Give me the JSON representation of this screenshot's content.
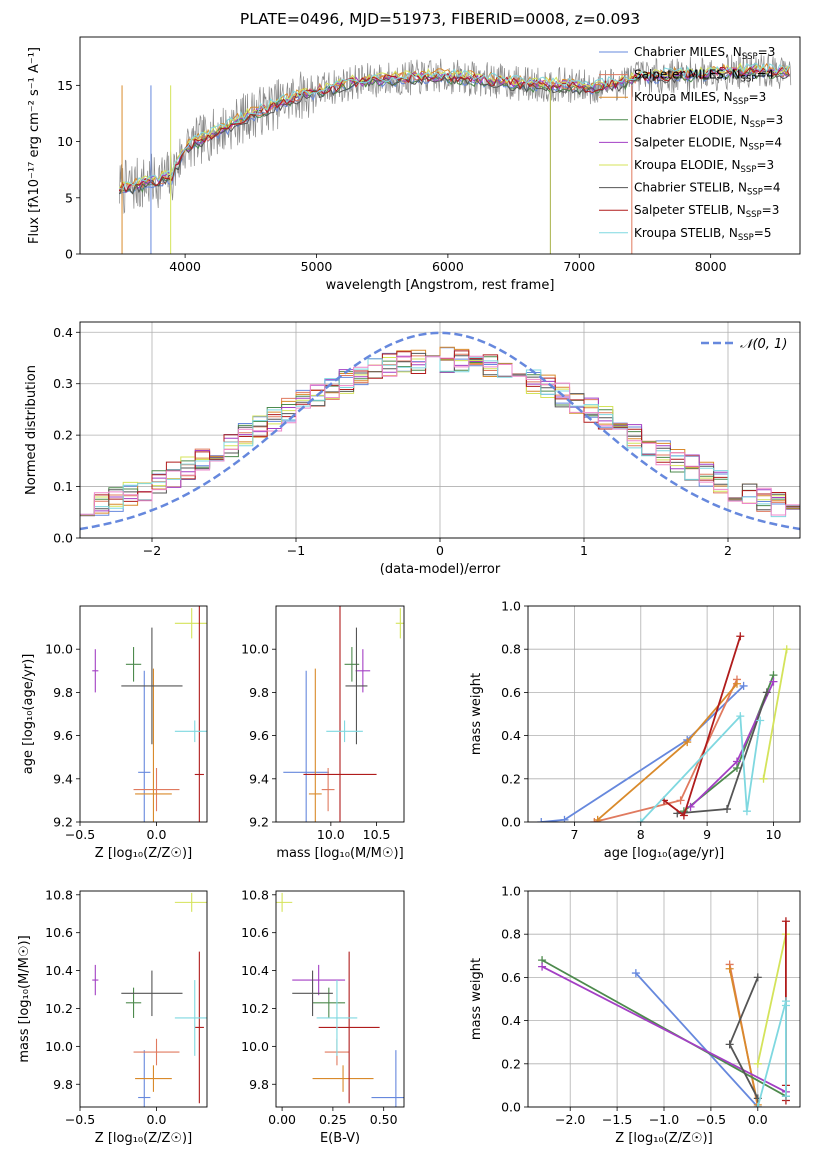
{
  "title": "PLATE=0496, MJD=51973, FIBERID=0008, z=0.093",
  "chart_data": [
    {
      "id": "spectrum",
      "type": "line",
      "xlabel": "wavelength [Angstrom, rest frame]",
      "ylabel": "Flux [fλ10⁻¹⁷ erg cm⁻² s⁻¹ A⁻¹]",
      "xlim": [
        3200,
        8680
      ],
      "ylim": [
        0,
        19.3
      ],
      "xticks": [
        4000,
        5000,
        6000,
        7000,
        8000
      ],
      "yticks": [
        0,
        5,
        10,
        15
      ],
      "legend_position": "top-right",
      "series": [
        {
          "name": "Chabrier MILES, N_SSP=3",
          "label": "Chabrier MILES, N",
          "sub": "SSP",
          "suffix": "=3",
          "color": "#6688dd"
        },
        {
          "name": "Salpeter MILES, N_SSP=4",
          "label": "Salpeter MILES, N",
          "sub": "SSP",
          "suffix": "=4",
          "color": "#e07a5f"
        },
        {
          "name": "Kroupa MILES, N_SSP=3",
          "label": "Kroupa MILES, N",
          "sub": "SSP",
          "suffix": "=3",
          "color": "#d98a2b"
        },
        {
          "name": "Chabrier ELODIE, N_SSP=3",
          "label": "Chabrier ELODIE, N",
          "sub": "SSP",
          "suffix": "=3",
          "color": "#4d8a4d"
        },
        {
          "name": "Salpeter ELODIE, N_SSP=4",
          "label": "Salpeter ELODIE, N",
          "sub": "SSP",
          "suffix": "=4",
          "color": "#a33fc4"
        },
        {
          "name": "Kroupa ELODIE, N_SSP=3",
          "label": "Kroupa ELODIE, N",
          "sub": "SSP",
          "suffix": "=3",
          "color": "#d4e35a"
        },
        {
          "name": "Chabrier STELIB, N_SSP=4",
          "label": "Chabrier STELIB, N",
          "sub": "SSP",
          "suffix": "=4",
          "color": "#555555"
        },
        {
          "name": "Salpeter STELIB, N_SSP=3",
          "label": "Salpeter STELIB, N",
          "sub": "SSP",
          "suffix": "=3",
          "color": "#b01c1c"
        },
        {
          "name": "Kroupa STELIB, N_SSP=5",
          "label": "Kroupa STELIB, N",
          "sub": "SSP",
          "suffix": "=5",
          "color": "#7fd8e0"
        }
      ],
      "continuum_anchors": [
        [
          3500,
          5.8
        ],
        [
          3700,
          6.3
        ],
        [
          3900,
          6.9
        ],
        [
          4000,
          9.4
        ],
        [
          4200,
          10.6
        ],
        [
          4500,
          12.4
        ],
        [
          4800,
          13.8
        ],
        [
          5000,
          14.5
        ],
        [
          5300,
          15.3
        ],
        [
          5600,
          15.6
        ],
        [
          6000,
          15.8
        ],
        [
          6300,
          15.5
        ],
        [
          6600,
          15.1
        ],
        [
          6900,
          15.0
        ],
        [
          7100,
          14.8
        ],
        [
          7300,
          15.2
        ],
        [
          7500,
          15.8
        ],
        [
          7800,
          15.9
        ],
        [
          8100,
          16.2
        ],
        [
          8400,
          16.3
        ],
        [
          8600,
          16.1
        ]
      ]
    },
    {
      "id": "residuals",
      "type": "step",
      "xlabel": "(data-model)/error",
      "ylabel": "Normed distribution",
      "xlim": [
        -2.5,
        2.5
      ],
      "ylim": [
        0,
        0.42
      ],
      "xticks": [
        -2,
        -1,
        0,
        1,
        2
      ],
      "yticks": [
        0.0,
        0.1,
        0.2,
        0.3,
        0.4
      ],
      "legend": "𝒩(0, 1)",
      "legend_position": "top-right",
      "gaussian_color": "#6688dd",
      "bin_width": 0.1
    },
    {
      "id": "age-vs-Z",
      "type": "errorbar",
      "xlabel": "Z [log₁₀(Z/Z☉)]",
      "ylabel": "age  [log₁₀(age/yr)]",
      "xlim": [
        -0.5,
        0.33
      ],
      "ylim": [
        9.2,
        10.2
      ],
      "xticks": [
        -0.5,
        0.0
      ],
      "yticks": [
        9.2,
        9.4,
        9.6,
        9.8,
        10.0
      ]
    },
    {
      "id": "age-vs-mass",
      "type": "errorbar",
      "xlabel": "mass [log₁₀(M/M☉)]",
      "xlim": [
        9.4,
        10.8
      ],
      "ylim": [
        9.2,
        10.2
      ],
      "xticks": [
        10.0,
        10.5
      ],
      "yticks": [
        9.2,
        9.4,
        9.6,
        9.8,
        10.0
      ]
    },
    {
      "id": "weight-vs-age",
      "type": "line",
      "xlabel": "age  [log₁₀(age/yr)]",
      "ylabel": "mass weight",
      "xlim": [
        6.3,
        10.4
      ],
      "ylim": [
        0,
        1
      ],
      "xticks": [
        7,
        8,
        9,
        10
      ],
      "yticks": [
        0.0,
        0.2,
        0.4,
        0.6,
        0.8,
        1.0
      ]
    },
    {
      "id": "mass-vs-Z",
      "type": "errorbar",
      "xlabel": "Z [log₁₀(Z/Z☉)]",
      "ylabel": "mass [log₁₀(M/M☉)]",
      "xlim": [
        -0.5,
        0.33
      ],
      "ylim": [
        9.68,
        10.82
      ],
      "xticks": [
        -0.5,
        0.0
      ],
      "yticks": [
        9.8,
        10.0,
        10.2,
        10.4,
        10.6,
        10.8
      ]
    },
    {
      "id": "mass-vs-ebv",
      "type": "errorbar",
      "xlabel": "E(B-V)",
      "xlim": [
        -0.03,
        0.6
      ],
      "ylim": [
        9.68,
        10.82
      ],
      "xticks": [
        0.0,
        0.25,
        0.5
      ],
      "yticks": [
        9.8,
        10.0,
        10.2,
        10.4,
        10.6,
        10.8
      ]
    },
    {
      "id": "weight-vs-Z",
      "type": "line",
      "xlabel": "Z [log₁₀(Z/Z☉)]",
      "ylabel": "mass weight",
      "xlim": [
        -2.45,
        0.45
      ],
      "ylim": [
        0,
        1
      ],
      "xticks": [
        -2.0,
        -1.5,
        -1.0,
        -0.5,
        0.0
      ],
      "yticks": [
        0.0,
        0.2,
        0.4,
        0.6,
        0.8,
        1.0
      ]
    }
  ],
  "fits": [
    {
      "name": "Chabrier MILES",
      "color": "#6688dd",
      "age": 9.43,
      "age_err": 0.47,
      "Z": -0.08,
      "Z_err": 0.04,
      "mass": 9.73,
      "mass_err": 0.25,
      "ebv": 0.56,
      "ebv_err": 0.12,
      "weights_age": [
        [
          6.5,
          0.0
        ],
        [
          6.85,
          0.01
        ],
        [
          8.7,
          0.38
        ],
        [
          9.55,
          0.63
        ]
      ],
      "weights_Z": [
        [
          0.0,
          0.0
        ],
        [
          -1.3,
          0.62
        ]
      ]
    },
    {
      "name": "Salpeter MILES",
      "color": "#e07a5f",
      "age": 9.35,
      "age_err": 0.1,
      "Z": 0.0,
      "Z_err": 0.15,
      "mass": 9.97,
      "mass_err": 0.07,
      "ebv": 0.27,
      "ebv_err": 0.06,
      "weights_age": [
        [
          7.3,
          0.0
        ],
        [
          8.6,
          0.1
        ],
        [
          9.45,
          0.66
        ]
      ],
      "weights_Z": [
        [
          0.0,
          0.0
        ],
        [
          -0.3,
          0.66
        ]
      ]
    },
    {
      "name": "Kroupa MILES",
      "color": "#d98a2b",
      "age": 9.33,
      "age_err": 0.58,
      "Z": -0.02,
      "Z_err": 0.12,
      "mass": 9.83,
      "mass_err": 0.07,
      "ebv": 0.3,
      "ebv_err": 0.15,
      "weights_age": [
        [
          7.35,
          0.01
        ],
        [
          8.7,
          0.37
        ],
        [
          9.45,
          0.64
        ]
      ],
      "weights_Z": [
        [
          0.0,
          0.01
        ],
        [
          -0.3,
          0.64
        ]
      ]
    },
    {
      "name": "Chabrier ELODIE",
      "color": "#4d8a4d",
      "age": 9.93,
      "age_err": 0.08,
      "Z": -0.15,
      "Z_err": 0.05,
      "mass": 10.23,
      "mass_err": 0.08,
      "ebv": 0.23,
      "ebv_err": 0.08,
      "weights_age": [
        [
          8.65,
          0.05
        ],
        [
          9.45,
          0.25
        ],
        [
          10.0,
          0.68
        ]
      ],
      "weights_Z": [
        [
          0.3,
          0.05
        ],
        [
          -2.3,
          0.68
        ]
      ]
    },
    {
      "name": "Salpeter ELODIE",
      "color": "#a33fc4",
      "age": 9.9,
      "age_err": 0.1,
      "Z": -0.4,
      "Z_err": 0.02,
      "mass": 10.35,
      "mass_err": 0.08,
      "ebv": 0.18,
      "ebv_err": 0.13,
      "weights_age": [
        [
          8.75,
          0.07
        ],
        [
          9.45,
          0.28
        ],
        [
          10.0,
          0.65
        ]
      ],
      "weights_Z": [
        [
          0.3,
          0.07
        ],
        [
          -2.3,
          0.65
        ]
      ]
    },
    {
      "name": "Kroupa ELODIE",
      "color": "#d4e35a",
      "age": 10.12,
      "age_err": 0.07,
      "Z": 0.23,
      "Z_err": 0.11,
      "mass": 10.76,
      "mass_err": 0.05,
      "ebv": 0.0,
      "ebv_err": 0.05,
      "weights_age": [
        [
          9.85,
          0.2
        ],
        [
          10.2,
          0.8
        ]
      ],
      "weights_Z": [
        [
          0.0,
          0.2
        ],
        [
          0.3,
          0.8
        ]
      ]
    },
    {
      "name": "Chabrier STELIB",
      "color": "#555555",
      "age": 9.83,
      "age_err": 0.27,
      "Z": -0.03,
      "Z_err": 0.2,
      "mass": 10.28,
      "mass_err": 0.12,
      "ebv": 0.15,
      "ebv_err": 0.1,
      "weights_age": [
        [
          8.55,
          0.04
        ],
        [
          9.3,
          0.06
        ],
        [
          9.9,
          0.6
        ]
      ],
      "weights_Z": [
        [
          0.0,
          0.04
        ],
        [
          -0.3,
          0.29
        ],
        [
          0.0,
          0.6
        ]
      ]
    },
    {
      "name": "Salpeter STELIB",
      "color": "#b01c1c",
      "age": 9.42,
      "age_err": 0.83,
      "Z": 0.28,
      "Z_err": 0.03,
      "mass": 10.1,
      "mass_err": 0.4,
      "ebv": 0.33,
      "ebv_err": 0.15,
      "weights_age": [
        [
          8.35,
          0.1
        ],
        [
          8.65,
          0.03
        ],
        [
          9.5,
          0.86
        ]
      ],
      "weights_Z": [
        [
          0.3,
          0.1
        ],
        [
          0.3,
          0.03
        ],
        [
          0.3,
          0.86
        ]
      ]
    },
    {
      "name": "Kroupa STELIB",
      "color": "#7fd8e0",
      "age": 9.62,
      "age_err": 0.05,
      "Z": 0.25,
      "Z_err": 0.13,
      "mass": 10.15,
      "mass_err": 0.2,
      "ebv": 0.27,
      "ebv_err": 0.1,
      "weights_age": [
        [
          8.0,
          0.0
        ],
        [
          9.5,
          0.49
        ],
        [
          9.6,
          0.05
        ],
        [
          9.8,
          0.47
        ]
      ],
      "weights_Z": [
        [
          0.0,
          0.0
        ],
        [
          0.3,
          0.49
        ],
        [
          0.3,
          0.05
        ],
        [
          0.3,
          0.47
        ]
      ]
    }
  ]
}
